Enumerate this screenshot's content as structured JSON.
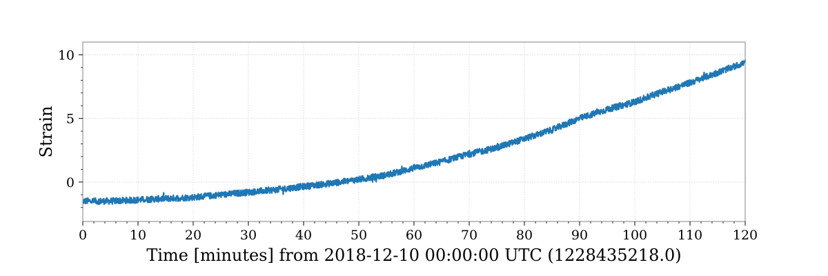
{
  "chart_data": {
    "type": "line",
    "title": "",
    "xlabel": "Time [minutes] from 2018-12-10 00:00:00 UTC (1228435218.0)",
    "ylabel": "Strain",
    "xlim": [
      0,
      120
    ],
    "ylim": [
      -3.1,
      11.0
    ],
    "x_ticks": [
      0,
      10,
      20,
      30,
      40,
      50,
      60,
      70,
      80,
      90,
      100,
      110,
      120
    ],
    "y_ticks": [
      0,
      5,
      10
    ],
    "grid": true,
    "line_color": "#1f77b4",
    "series": [
      {
        "x": [
          0,
          5,
          10,
          15,
          20,
          25,
          30,
          35,
          40,
          45,
          50,
          55,
          60,
          65,
          70,
          75,
          80,
          85,
          90,
          95,
          100,
          105,
          110,
          115,
          120
        ],
        "values": [
          -1.5,
          -1.5,
          -1.4,
          -1.3,
          -1.2,
          -1.0,
          -0.8,
          -0.6,
          -0.35,
          -0.1,
          0.2,
          0.55,
          1.1,
          1.6,
          2.2,
          2.7,
          3.4,
          4.1,
          5.0,
          5.7,
          6.3,
          7.1,
          7.8,
          8.6,
          9.4
        ],
        "noise_amplitude": 0.25
      }
    ]
  }
}
